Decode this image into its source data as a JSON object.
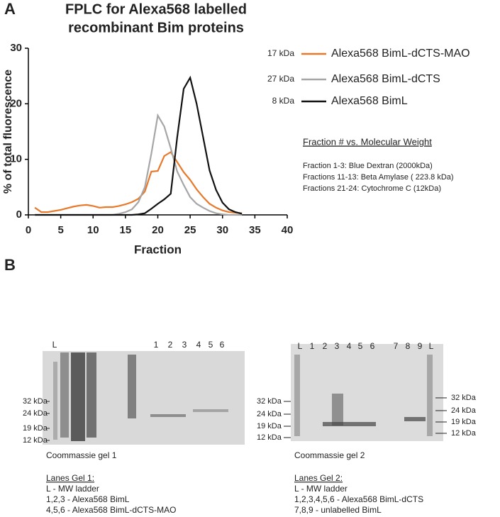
{
  "chart_data": {
    "type": "line",
    "title": [
      "FPLC for Alexa568 labelled",
      "recombinant Bim proteins"
    ],
    "x_label": "Fraction",
    "y_label": "% of total fluorescence",
    "x": [
      1,
      2,
      3,
      4,
      5,
      6,
      7,
      8,
      9,
      10,
      11,
      12,
      13,
      14,
      15,
      16,
      17,
      18,
      19,
      20,
      21,
      22,
      23,
      24,
      25,
      26,
      27,
      28,
      29,
      30,
      31,
      32,
      33
    ],
    "series": [
      {
        "name": "Alexa568 BimL-dCTS-MAO",
        "size": "17 kDa",
        "color": "#e8782a",
        "values": [
          1.3,
          0.5,
          0.5,
          0.7,
          0.9,
          1.2,
          1.5,
          1.7,
          1.8,
          1.6,
          1.3,
          1.4,
          1.4,
          1.6,
          1.9,
          2.3,
          2.9,
          4.2,
          7.8,
          7.9,
          10.6,
          11.3,
          9.5,
          7.7,
          6.3,
          4.6,
          3.2,
          2.0,
          1.3,
          0.8,
          0.5,
          0.4,
          0.3
        ]
      },
      {
        "name": "Alexa568 BimL-dCTS",
        "size": "27 kDa",
        "color": "#a6a6a6",
        "values": [
          0,
          0,
          0,
          0,
          0,
          0,
          0,
          0,
          0,
          0,
          0,
          0,
          0,
          0.2,
          0.5,
          1.0,
          2.3,
          5.0,
          11.0,
          17.9,
          15.9,
          12.0,
          7.8,
          5.4,
          3.2,
          2.0,
          1.3,
          0.7,
          0.3,
          0.1,
          0,
          0,
          0
        ]
      },
      {
        "name": "Alexa568 BimL",
        "size": "8 kDa",
        "color": "#111111",
        "values": [
          0,
          0,
          0,
          0,
          0,
          0,
          0,
          0,
          0,
          0,
          0,
          0,
          0,
          0,
          0,
          0,
          0.1,
          0.3,
          1.1,
          2.0,
          2.8,
          3.8,
          14.0,
          22.7,
          24.7,
          20.0,
          14.0,
          8.0,
          4.5,
          2.2,
          1.0,
          0.5,
          0.2
        ]
      }
    ],
    "xlim": [
      0,
      40
    ],
    "xticks": [
      0,
      5,
      10,
      15,
      20,
      25,
      30,
      35,
      40
    ],
    "ylim": [
      0,
      30
    ],
    "yticks": [
      0,
      10,
      20,
      30
    ]
  },
  "panel_a_label": "A",
  "fraction_notes": {
    "title": "Fraction # vs. Molecular Weight",
    "lines": [
      "Fraction 1-3: Blue Dextran (2000kDa)",
      "Fractions 11-13: Beta Amylase ( 223.8 kDa)",
      "Fractions 21-24: Cytochrome C (12kDa)"
    ]
  },
  "panel_b": {
    "label": "B",
    "gels": [
      {
        "lanes": [
          "L",
          "1",
          "2",
          "3",
          "4",
          "5",
          "6"
        ],
        "markers_left": [
          "32 kDa",
          "24 kDa",
          "19 kDa",
          "12 kDa"
        ],
        "caption": "Coommassie gel 1",
        "legend_title": "Lanes Gel 1:",
        "legend_lines": [
          "L - MW ladder",
          "1,2,3 - Alexa568 BimL",
          "4,5,6 - Alexa568 BimL-dCTS-MAO"
        ]
      },
      {
        "lanes": [
          "L",
          "1",
          "2",
          "3",
          "4",
          "5",
          "6",
          "7",
          "8",
          "9",
          "L"
        ],
        "markers_left": [
          "32 kDa",
          "24 kDa",
          "19 kDa",
          "12 kDa"
        ],
        "markers_right": [
          "32 kDa",
          "24 kDa",
          "19 kDa",
          "12 kDa"
        ],
        "caption": "Coommassie gel 2",
        "legend_title": "Lanes Gel 2:",
        "legend_lines": [
          "L - MW ladder",
          "1,2,3,4,5,6 - Alexa568 BimL-dCTS",
          "7,8,9 - unlabelled BimL"
        ]
      }
    ]
  }
}
